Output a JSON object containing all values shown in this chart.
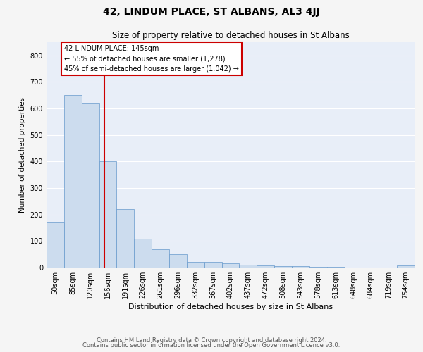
{
  "title": "42, LINDUM PLACE, ST ALBANS, AL3 4JJ",
  "subtitle": "Size of property relative to detached houses in St Albans",
  "xlabel": "Distribution of detached houses by size in St Albans",
  "ylabel": "Number of detached properties",
  "footer_line1": "Contains HM Land Registry data © Crown copyright and database right 2024.",
  "footer_line2": "Contains public sector information licensed under the Open Government Licence v3.0.",
  "bar_labels": [
    "50sqm",
    "85sqm",
    "120sqm",
    "156sqm",
    "191sqm",
    "226sqm",
    "261sqm",
    "296sqm",
    "332sqm",
    "367sqm",
    "402sqm",
    "437sqm",
    "472sqm",
    "508sqm",
    "543sqm",
    "578sqm",
    "613sqm",
    "648sqm",
    "684sqm",
    "719sqm",
    "754sqm"
  ],
  "bar_values": [
    170,
    650,
    620,
    400,
    220,
    110,
    70,
    50,
    20,
    20,
    15,
    10,
    8,
    5,
    5,
    3,
    2,
    0,
    0,
    0,
    7
  ],
  "bar_color": "#ccdcee",
  "bar_edge_color": "#6699cc",
  "fig_bg_color": "#f5f5f5",
  "plot_bg_color": "#e8eef8",
  "vline_x": 2.78,
  "vline_color": "#cc0000",
  "annotation_text": "42 LINDUM PLACE: 145sqm\n← 55% of detached houses are smaller (1,278)\n45% of semi-detached houses are larger (1,042) →",
  "annotation_box_color": "#cc0000",
  "annotation_bg": "#ffffff",
  "ylim": [
    0,
    850
  ],
  "yticks": [
    0,
    100,
    200,
    300,
    400,
    500,
    600,
    700,
    800
  ],
  "grid_color": "#ffffff",
  "title_fontsize": 10,
  "subtitle_fontsize": 8.5,
  "annotation_fontsize": 7,
  "ylabel_fontsize": 7.5,
  "xlabel_fontsize": 8,
  "tick_fontsize": 7,
  "footer_fontsize": 6
}
